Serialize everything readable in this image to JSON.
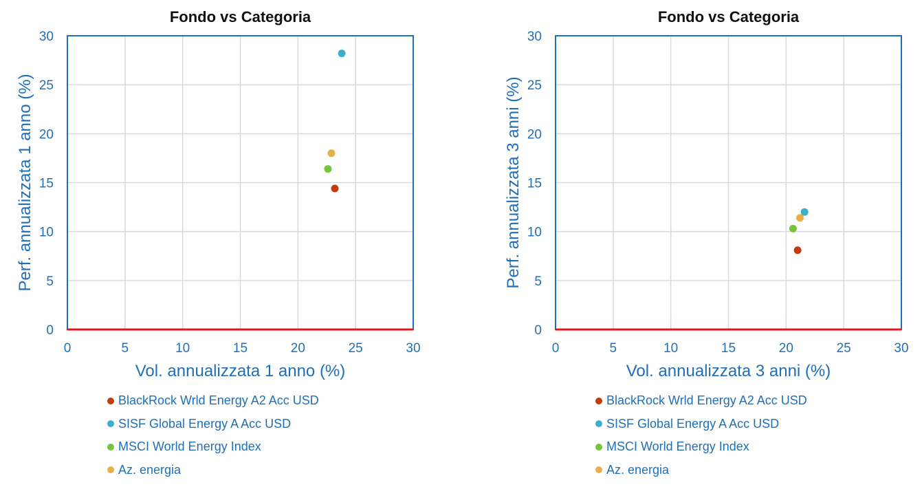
{
  "colors": {
    "axis_text": "#1f6fb8",
    "title": "#111111",
    "grid": "#d9d9d9",
    "frame": "#1f6fb8",
    "zero_line": "#e8141c"
  },
  "charts": [
    {
      "title": "Fondo vs Categoria",
      "xlabel": "Vol. annualizzata 1 anno (%)",
      "ylabel": "Perf. annualizzata 1 anno (%)",
      "x_ticks": [
        "0",
        "5",
        "10",
        "15",
        "20",
        "25",
        "30"
      ],
      "y_ticks": [
        "0",
        "5",
        "10",
        "15",
        "20",
        "25",
        "30"
      ]
    },
    {
      "title": "Fondo vs Categoria",
      "xlabel": "Vol. annualizzata 3 anni (%)",
      "ylabel": "Perf. annualizzata 3 anni (%)",
      "x_ticks": [
        "0",
        "5",
        "10",
        "15",
        "20",
        "25",
        "30"
      ],
      "y_ticks": [
        "0",
        "5",
        "10",
        "15",
        "20",
        "25",
        "30"
      ]
    }
  ],
  "legend": [
    {
      "label": "BlackRock Wrld Energy A2 Acc USD",
      "color": "#c23b0c"
    },
    {
      "label": "SISF Global Energy A Acc USD",
      "color": "#3aafc9"
    },
    {
      "label": "MSCI World Energy Index",
      "color": "#76c43a"
    },
    {
      "label": "Az. energia",
      "color": "#e9b04a"
    }
  ],
  "chart_data": [
    {
      "type": "scatter",
      "title": "Fondo vs Categoria",
      "xlabel": "Vol. annualizzata 1 anno (%)",
      "ylabel": "Perf. annualizzata 1 anno (%)",
      "xlim": [
        0,
        30
      ],
      "ylim": [
        0,
        30
      ],
      "grid": true,
      "legend_position": "bottom",
      "series": [
        {
          "name": "BlackRock Wrld Energy A2 Acc USD",
          "color": "#c23b0c",
          "points": [
            {
              "x": 23.2,
              "y": 14.4
            }
          ]
        },
        {
          "name": "SISF Global Energy A Acc USD",
          "color": "#3aafc9",
          "points": [
            {
              "x": 23.8,
              "y": 28.2
            }
          ]
        },
        {
          "name": "MSCI World Energy Index",
          "color": "#76c43a",
          "points": [
            {
              "x": 22.6,
              "y": 16.4
            }
          ]
        },
        {
          "name": "Az. energia",
          "color": "#e9b04a",
          "points": [
            {
              "x": 22.9,
              "y": 18.0
            }
          ]
        }
      ]
    },
    {
      "type": "scatter",
      "title": "Fondo vs Categoria",
      "xlabel": "Vol. annualizzata 3 anni (%)",
      "ylabel": "Perf. annualizzata 3 anni (%)",
      "xlim": [
        0,
        30
      ],
      "ylim": [
        0,
        30
      ],
      "grid": true,
      "legend_position": "bottom",
      "series": [
        {
          "name": "BlackRock Wrld Energy A2 Acc USD",
          "color": "#c23b0c",
          "points": [
            {
              "x": 21.0,
              "y": 8.1
            }
          ]
        },
        {
          "name": "SISF Global Energy A Acc USD",
          "color": "#3aafc9",
          "points": [
            {
              "x": 21.6,
              "y": 12.0
            }
          ]
        },
        {
          "name": "MSCI World Energy Index",
          "color": "#76c43a",
          "points": [
            {
              "x": 20.6,
              "y": 10.3
            }
          ]
        },
        {
          "name": "Az. energia",
          "color": "#e9b04a",
          "points": [
            {
              "x": 21.2,
              "y": 11.4
            }
          ]
        }
      ]
    }
  ]
}
